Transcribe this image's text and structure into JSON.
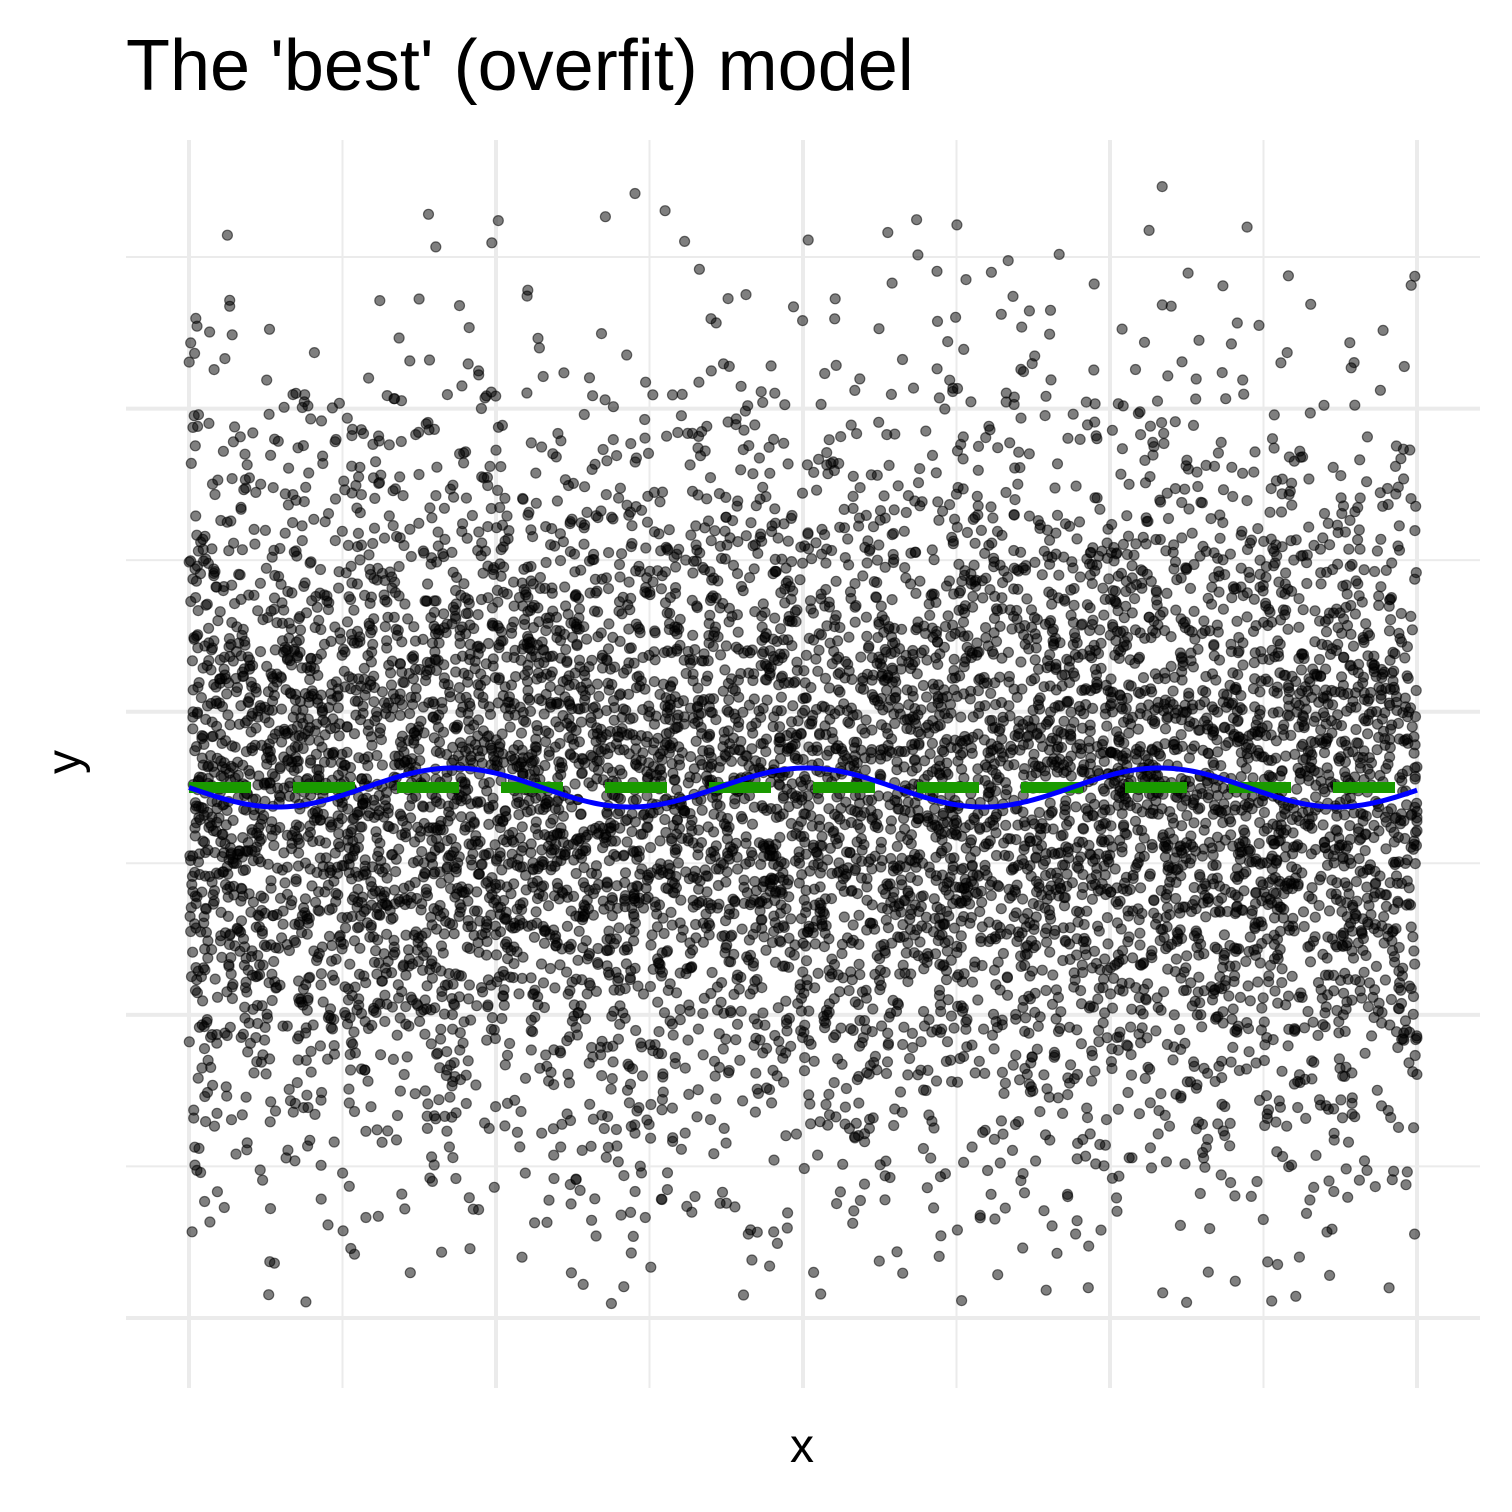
{
  "chart_data": {
    "type": "scatter",
    "title": "The 'best' (overfit) model",
    "xlabel": "x",
    "ylabel": "y",
    "xlim": [
      0,
      16
    ],
    "ylim": [
      -4.08,
      4.08
    ],
    "grid": true,
    "point_count": 8000,
    "points": {
      "x_range": [
        0,
        16
      ],
      "mean_trend": "approximately zero",
      "noise_sd": 1.4
    },
    "series": [
      {
        "kind": "points",
        "color": "#000000",
        "opacity": 0.5
      },
      {
        "kind": "line",
        "color": "#0000ff",
        "form": "sinusoid",
        "amplitude": 0.15,
        "period": 4.6,
        "phase_at_x0": 0.0,
        "x": [
          0,
          1.15,
          2.3,
          3.45,
          4.6,
          5.75,
          6.9,
          8.05,
          9.2,
          10.35,
          11.5,
          12.65,
          13.8,
          14.95,
          16
        ],
        "y": [
          0.0,
          -0.15,
          0.0,
          0.15,
          0.0,
          -0.15,
          0.0,
          0.15,
          0.0,
          -0.15,
          0.0,
          0.15,
          0.0,
          -0.15,
          0.0
        ]
      },
      {
        "kind": "line",
        "color": "#1a9a00",
        "style": "dashed",
        "x": [
          0,
          16
        ],
        "y": [
          0,
          0
        ]
      }
    ]
  }
}
